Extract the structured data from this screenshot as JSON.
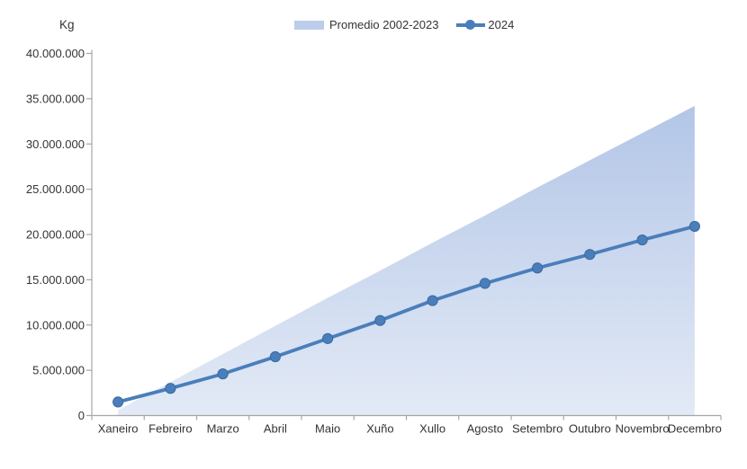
{
  "y_axis": {
    "unit_label": "Kg",
    "tick_labels": [
      "0",
      "5.000.000",
      "10.000.000",
      "15.000.000",
      "20.000.000",
      "25.000.000",
      "30.000.000",
      "35.000.000",
      "40.000.000"
    ]
  },
  "legend": {
    "items": [
      {
        "label": "Promedio 2002-2023",
        "type": "area"
      },
      {
        "label": "2024",
        "type": "line-marker"
      }
    ]
  },
  "colors": {
    "line": "#4a7ebb",
    "marker": "#4a7ebb",
    "marker_stroke": "#3b6aa0",
    "area_top": "#b3c6e7",
    "area_bottom": "#e3eaf6",
    "legend_swatch": "#bccde9",
    "axis": "#a6a6a6",
    "text": "#333333"
  },
  "chart_data": {
    "type": "area",
    "title": "",
    "ylabel": "Kg",
    "xlabel": "",
    "ylim": [
      0,
      40000000
    ],
    "ytick_interval": 5000000,
    "grid": false,
    "legend_position": "top",
    "categories": [
      "Xaneiro",
      "Febreiro",
      "Marzo",
      "Abril",
      "Maio",
      "Xuño",
      "Xullo",
      "Agosto",
      "Setembro",
      "Outubro",
      "Novembro",
      "Decembro"
    ],
    "series": [
      {
        "name": "Promedio 2002-2023",
        "type": "area",
        "values": [
          600000,
          3700000,
          6800000,
          9900000,
          13000000,
          16000000,
          19100000,
          22100000,
          25200000,
          28200000,
          31200000,
          34200000
        ]
      },
      {
        "name": "2024",
        "type": "line",
        "values": [
          1500000,
          3000000,
          4600000,
          6500000,
          8500000,
          10500000,
          12700000,
          14600000,
          16300000,
          17800000,
          19400000,
          20900000
        ]
      }
    ]
  }
}
